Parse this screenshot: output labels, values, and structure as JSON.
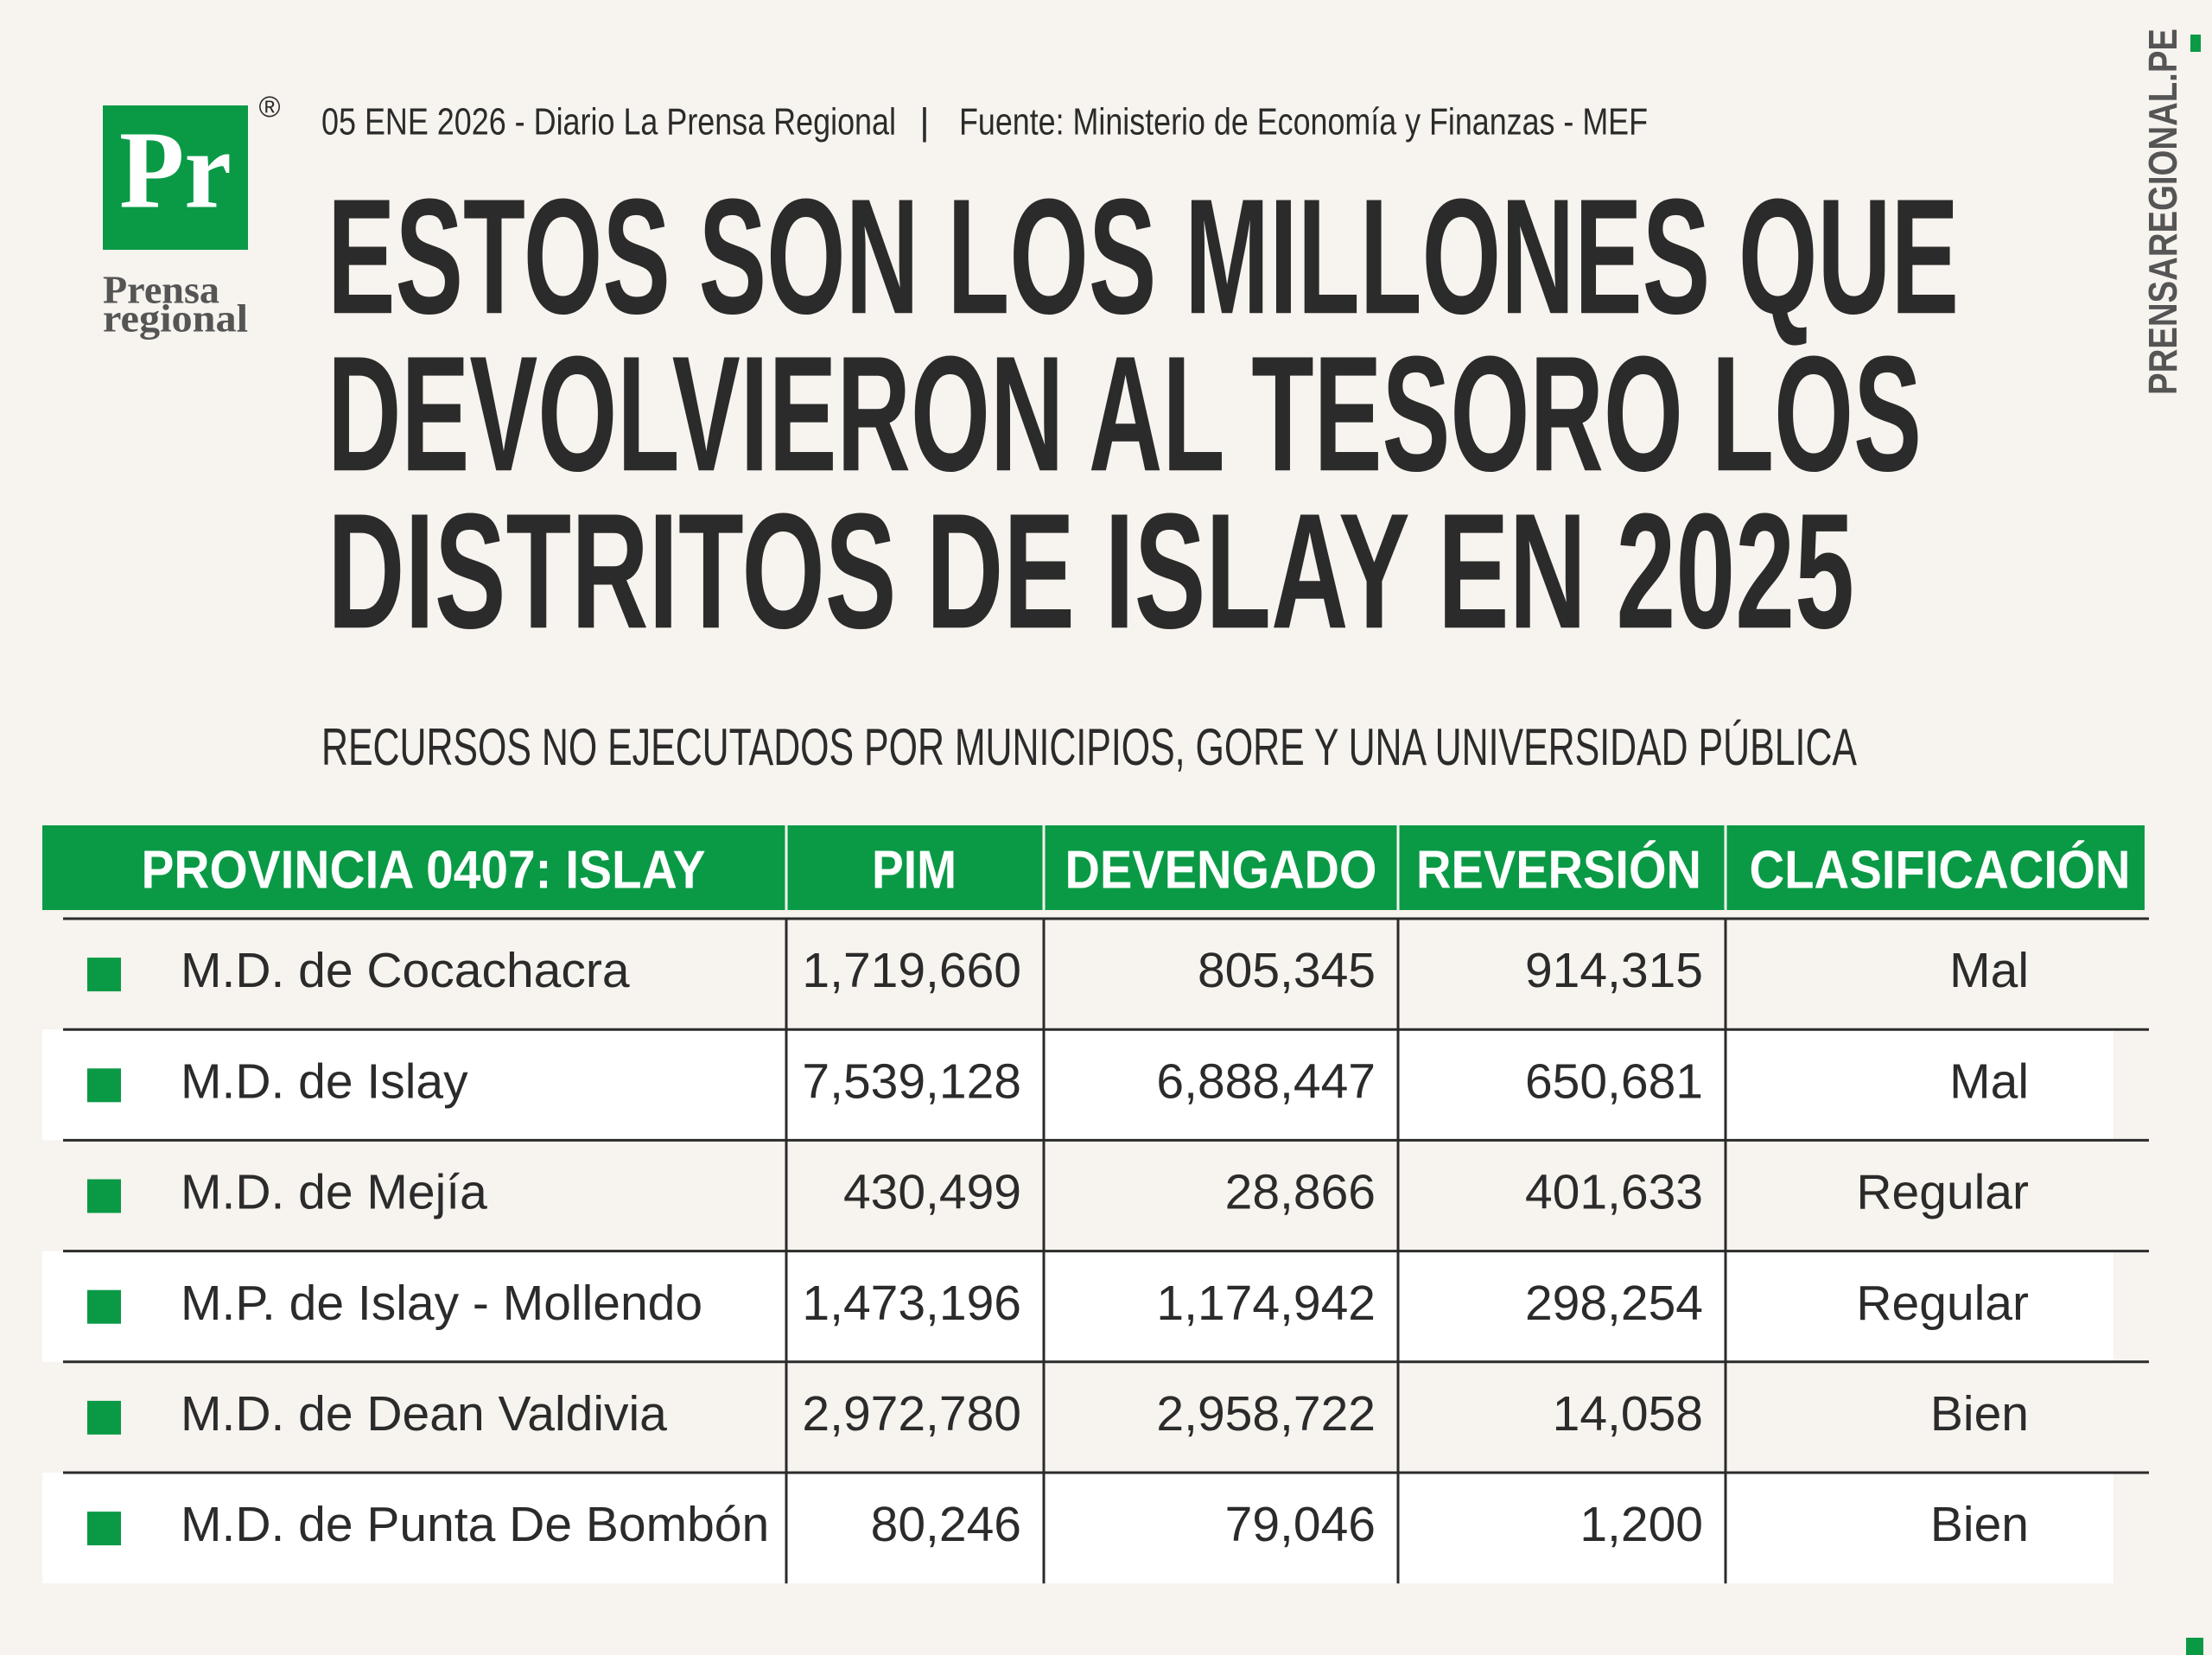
{
  "logo": {
    "mark": "Pr",
    "registered": "®",
    "name_line1": "Prensa",
    "name_line2": "regional"
  },
  "header": {
    "date_source": "05 ENE 2026 - Diario La Prensa Regional",
    "separator": "|",
    "source": "Fuente: Ministerio de Economía y Finanzas - MEF",
    "title_lines": [
      "ESTOS SON LOS MILLONES QUE",
      "DEVOLVIERON  AL TESORO LOS",
      "DISTRITOS DE ISLAY EN 2025"
    ],
    "subtitle": "RECURSOS NO EJECUTADOS POR MUNICIPIOS, GORE Y UNA UNIVERSIDAD PÚBLICA"
  },
  "side_text": "PRENSAREGIONAL.PE",
  "table": {
    "columns": [
      "PROVINCIA 0407: ISLAY",
      "PIM",
      "DEVENGADO",
      "REVERSIÓN",
      "CLASIFICACIÓN"
    ],
    "rows": [
      [
        "M.D. de Cocachacra",
        "1,719,660",
        "805,345",
        "914,315",
        "Mal"
      ],
      [
        "M.D. de Islay",
        "7,539,128",
        "6,888,447",
        "650,681",
        "Mal"
      ],
      [
        "M.D. de Mejía",
        "430,499",
        "28,866",
        "401,633",
        "Regular"
      ],
      [
        "M.P. de Islay - Mollendo",
        "1,473,196",
        "1,174,942",
        "298,254",
        "Regular"
      ],
      [
        "M.D. de Dean Valdivia",
        "2,972,780",
        "2,958,722",
        "14,058",
        "Bien"
      ],
      [
        "M.D. de Punta De Bombón",
        "80,246",
        "79,046",
        "1,200",
        "Bien"
      ]
    ]
  }
}
